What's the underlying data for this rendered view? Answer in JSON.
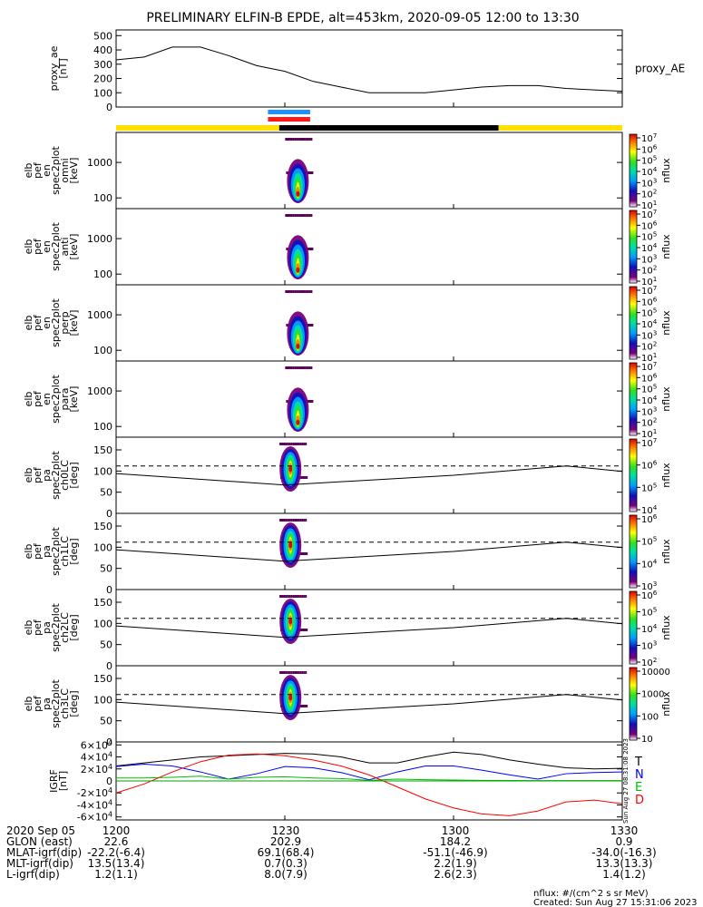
{
  "title": "PRELIMINARY ELFIN-B EPDE, alt=453km, 2020-09-05 12:00 to 13:30",
  "chart_data": {
    "type": "multi-panel time series / spectrogram",
    "time_range": [
      "2020-09-05 12:00",
      "2020-09-05 13:30"
    ],
    "x_minutes": [
      0,
      30,
      60,
      90
    ],
    "panels": [
      {
        "id": "proxy_ae",
        "type": "line",
        "ylabel": [
          "proxy_ae",
          "[nT]"
        ],
        "yticks": [
          "0",
          "100",
          "200",
          "300",
          "400",
          "500"
        ],
        "ylim": [
          0,
          540
        ],
        "legend": "proxy_AE",
        "series": [
          {
            "color": "#000000",
            "x": [
              0,
              5,
              10,
              15,
              20,
              25,
              30,
              35,
              40,
              45,
              50,
              55,
              60,
              65,
              70,
              75,
              80,
              85,
              90
            ],
            "y": [
              330,
              350,
              420,
              420,
              360,
              290,
              250,
              180,
              140,
              100,
              100,
              100,
              120,
              140,
              150,
              150,
              130,
              120,
              110
            ]
          }
        ]
      },
      {
        "id": "bars",
        "type": "status_bars",
        "main_bar": [
          {
            "from": 0,
            "to": 29,
            "color": "#ffe000"
          },
          {
            "from": 29,
            "to": 68,
            "color": "#000000"
          },
          {
            "from": 68,
            "to": 90,
            "color": "#ffe000"
          }
        ],
        "markers": [
          {
            "from": 27,
            "to": 34.5,
            "color": "#1e90ff",
            "row": 0
          },
          {
            "from": 27,
            "to": 34.5,
            "color": "#ff1a1a",
            "row": 1
          }
        ]
      },
      {
        "id": "en_omni",
        "type": "spectrogram",
        "ylabel": [
          "elb",
          "pef",
          "en",
          "spec2plot",
          "omni",
          "[keV]"
        ],
        "yticks": [
          "100",
          "1000"
        ],
        "log": true,
        "ylim": [
          50,
          7000
        ],
        "zticks": [
          "10<sup>1</sup>",
          "10<sup>2</sup>",
          "10<sup>3</sup>",
          "10<sup>4</sup>",
          "10<sup>5</sup>",
          "10<sup>6</sup>",
          "10<sup>7</sup>"
        ],
        "zlabel": "nflux"
      },
      {
        "id": "en_anti",
        "type": "spectrogram",
        "ylabel": [
          "elb",
          "pef",
          "en",
          "spec2plot",
          "anti",
          "[keV]"
        ],
        "yticks": [
          "100",
          "1000"
        ],
        "log": true,
        "ylim": [
          50,
          7000
        ],
        "zticks": [
          "10<sup>1</sup>",
          "10<sup>2</sup>",
          "10<sup>3</sup>",
          "10<sup>4</sup>",
          "10<sup>5</sup>",
          "10<sup>6</sup>",
          "10<sup>7</sup>"
        ],
        "zlabel": "nflux"
      },
      {
        "id": "en_perp",
        "type": "spectrogram",
        "ylabel": [
          "elb",
          "pef",
          "en",
          "spec2plot",
          "perp",
          "[keV]"
        ],
        "yticks": [
          "100",
          "1000"
        ],
        "log": true,
        "ylim": [
          50,
          7000
        ],
        "zticks": [
          "10<sup>1</sup>",
          "10<sup>2</sup>",
          "10<sup>3</sup>",
          "10<sup>4</sup>",
          "10<sup>5</sup>",
          "10<sup>6</sup>",
          "10<sup>7</sup>"
        ],
        "zlabel": "nflux"
      },
      {
        "id": "en_para",
        "type": "spectrogram",
        "ylabel": [
          "elb",
          "pef",
          "en",
          "spec2plot",
          "para",
          "[keV]"
        ],
        "yticks": [
          "100",
          "1000"
        ],
        "log": true,
        "ylim": [
          50,
          7000
        ],
        "zticks": [
          "10<sup>1</sup>",
          "10<sup>2</sup>",
          "10<sup>3</sup>",
          "10<sup>4</sup>",
          "10<sup>5</sup>",
          "10<sup>6</sup>",
          "10<sup>7</sup>"
        ],
        "zlabel": "nflux"
      },
      {
        "id": "pa_ch0",
        "type": "spectrogram",
        "ylabel": [
          "elb",
          "pef",
          "pa",
          "spec2plot",
          "ch0LC",
          "[deg]"
        ],
        "yticks": [
          "0",
          "50",
          "100",
          "150"
        ],
        "log": false,
        "ylim": [
          0,
          180
        ],
        "zticks": [
          "10<sup>4</sup>",
          "10<sup>5</sup>",
          "10<sup>6</sup>",
          "10<sup>7</sup>"
        ],
        "zlabel": "nflux"
      },
      {
        "id": "pa_ch1",
        "type": "spectrogram",
        "ylabel": [
          "elb",
          "pef",
          "pa",
          "spec2plot",
          "ch1LC",
          "[deg]"
        ],
        "yticks": [
          "0",
          "50",
          "100",
          "150"
        ],
        "log": false,
        "ylim": [
          0,
          180
        ],
        "zticks": [
          "10<sup>3</sup>",
          "10<sup>4</sup>",
          "10<sup>5</sup>",
          "10<sup>6</sup>"
        ],
        "zlabel": "nflux"
      },
      {
        "id": "pa_ch2",
        "type": "spectrogram",
        "ylabel": [
          "elb",
          "pef",
          "pa",
          "spec2plot",
          "ch2LC",
          "[deg]"
        ],
        "yticks": [
          "0",
          "50",
          "100",
          "150"
        ],
        "log": false,
        "ylim": [
          0,
          180
        ],
        "zticks": [
          "10<sup>2</sup>",
          "10<sup>3</sup>",
          "10<sup>4</sup>",
          "10<sup>5</sup>",
          "10<sup>6</sup>"
        ],
        "zlabel": "nflux"
      },
      {
        "id": "pa_ch3",
        "type": "spectrogram",
        "ylabel": [
          "elb",
          "pef",
          "pa",
          "spec2plot",
          "ch3LC",
          "[deg]"
        ],
        "yticks": [
          "0",
          "50",
          "100",
          "150"
        ],
        "log": false,
        "ylim": [
          0,
          180
        ],
        "zticks": [
          "10",
          "100",
          "1000",
          "10000"
        ],
        "zlabel": "nflux"
      },
      {
        "id": "igrf",
        "type": "line",
        "ylabel": [
          "IGRF",
          "[nT]"
        ],
        "yticks": [
          "-6×10<sup>4</sup>",
          "-4×10<sup>4</sup>",
          "-2×10<sup>4</sup>",
          "0",
          "2×10<sup>4</sup>",
          "4×10<sup>4</sup>",
          "6×10<sup>4</sup>"
        ],
        "ylim": [
          -65000,
          65000
        ],
        "legend": [
          {
            "label": "T",
            "color": "#000000"
          },
          {
            "label": "N",
            "color": "#0000ff"
          },
          {
            "label": "E",
            "color": "#00c000"
          },
          {
            "label": "D",
            "color": "#ff0000"
          }
        ],
        "series": [
          {
            "name": "T",
            "color": "#000000",
            "x": [
              0,
              5,
              10,
              15,
              20,
              25,
              30,
              35,
              40,
              45,
              50,
              55,
              60,
              65,
              70,
              75,
              80,
              85,
              90
            ],
            "y": [
              25000,
              30000,
              35000,
              40000,
              42000,
              44000,
              46000,
              45000,
              40000,
              30000,
              30000,
              40000,
              48000,
              44000,
              35000,
              28000,
              22000,
              20000,
              21000
            ]
          },
          {
            "name": "N",
            "color": "#0000ff",
            "x": [
              0,
              5,
              10,
              15,
              20,
              25,
              30,
              35,
              40,
              45,
              50,
              55,
              60,
              65,
              70,
              75,
              80,
              85,
              90
            ],
            "y": [
              24000,
              28000,
              25000,
              15000,
              3000,
              12000,
              24000,
              22000,
              14000,
              2000,
              15000,
              25000,
              25000,
              18000,
              10000,
              3000,
              12000,
              14000,
              15000
            ]
          },
          {
            "name": "E",
            "color": "#00c000",
            "x": [
              0,
              5,
              10,
              15,
              20,
              25,
              30,
              35,
              40,
              45,
              50,
              55,
              60,
              65,
              70,
              75,
              80,
              85,
              90
            ],
            "y": [
              5000,
              5000,
              6000,
              8000,
              3000,
              6000,
              7000,
              5000,
              4000,
              1000,
              3000,
              2000,
              1500,
              1000,
              800,
              600,
              500,
              500,
              500
            ]
          },
          {
            "name": "D",
            "color": "#ff0000",
            "x": [
              0,
              5,
              10,
              15,
              20,
              25,
              30,
              35,
              40,
              45,
              50,
              55,
              60,
              65,
              70,
              75,
              80,
              85,
              90
            ],
            "y": [
              -20000,
              -5000,
              15000,
              32000,
              43000,
              45000,
              42000,
              35000,
              25000,
              10000,
              -10000,
              -30000,
              -45000,
              -55000,
              -58000,
              -50000,
              -35000,
              -32000,
              -38000
            ]
          }
        ],
        "side_text": "Sun Aug 27 08:31:08 2023"
      }
    ],
    "xaxis": {
      "rows": [
        {
          "label": "2020 Sep 05",
          "values": [
            "1200",
            "1230",
            "1300",
            "1330"
          ]
        },
        {
          "label": "GLON (east)",
          "values": [
            "22.6",
            "202.9",
            "184.2",
            "0.9"
          ]
        },
        {
          "label": "MLAT-igrf(dip)",
          "values": [
            "-22.2(-6.4)",
            "69.1(68.4)",
            "-51.1(-46.9)",
            "-34.0(-16.3)"
          ]
        },
        {
          "label": "MLT-igrf(dip)",
          "values": [
            "13.5(13.4)",
            "0.7(0.3)",
            "2.2(1.9)",
            "13.3(13.3)"
          ]
        },
        {
          "label": "L-igrf(dip)",
          "values": [
            "1.2(1.1)",
            "8.0(7.9)",
            "2.6(2.3)",
            "1.4(1.2)"
          ]
        }
      ]
    }
  },
  "footer": {
    "units": "nflux: #/(cm^2 s sr MeV)",
    "created": "Created: Sun Aug 27 15:31:06 2023"
  }
}
